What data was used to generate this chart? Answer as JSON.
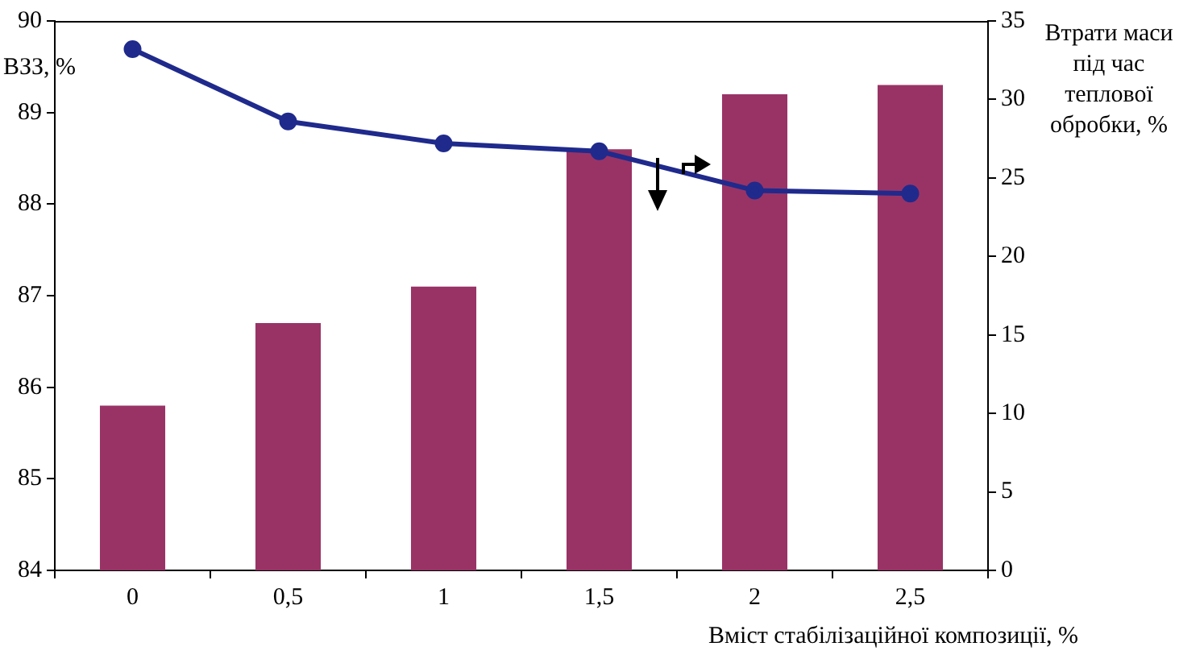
{
  "chart_data": {
    "type": "bar",
    "xlabel": "Вміст стабілізаційної композиції, %",
    "ylabel": "ВЗЗ, %",
    "y2label": "Втрати маси під час теплової обробки, %",
    "categories": [
      "0",
      "0,5",
      "1",
      "1,5",
      "2",
      "2,5"
    ],
    "series": [
      {
        "color": "#993366",
        "values": [
          85.8,
          86.7,
          87.1,
          88.6,
          89.2,
          89.3
        ]
      },
      {
        "type": "line",
        "axis": "y2",
        "color": "#1f2a8c",
        "marker": "circle",
        "values": [
          33.2,
          28.6,
          27.2,
          26.7,
          24.2,
          24.0
        ]
      }
    ],
    "ylim": [
      84,
      90
    ],
    "yticks": [
      84,
      85,
      86,
      87,
      88,
      89,
      90
    ],
    "y2lim": [
      0,
      35
    ],
    "y2ticks": [
      0,
      5,
      10,
      15,
      20,
      25,
      30,
      35
    ],
    "grid": false,
    "legend": false
  }
}
